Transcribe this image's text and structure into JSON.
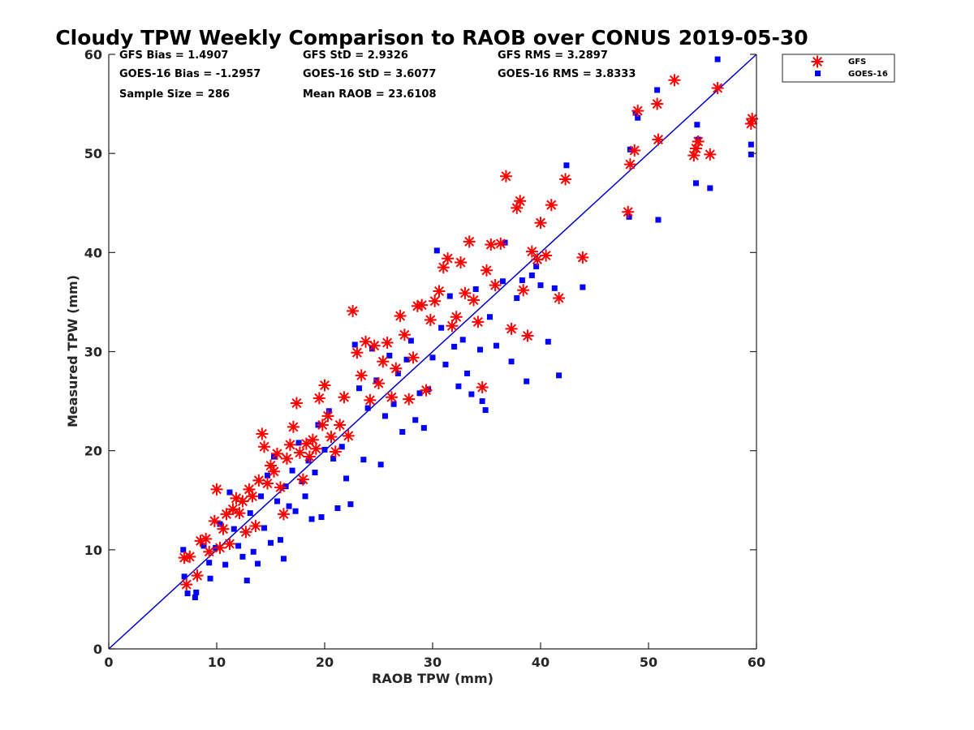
{
  "chart_data": {
    "type": "scatter",
    "title": "Cloudy TPW Weekly Comparison to RAOB over CONUS 2019-05-30",
    "xlabel": "RAOB TPW (mm)",
    "ylabel": "Measured TPW (mm)",
    "xlim": [
      0,
      60
    ],
    "ylim": [
      0,
      60
    ],
    "xticks": [
      "0",
      "10",
      "20",
      "30",
      "40",
      "50",
      "60"
    ],
    "yticks": [
      "0",
      "10",
      "20",
      "30",
      "40",
      "50",
      "60"
    ],
    "grid": false,
    "legend_position": "outside-top-right",
    "stats": [
      {
        "label": "GFS Bias = 1.4907"
      },
      {
        "label": "GFS StD = 2.9326"
      },
      {
        "label": "GFS RMS = 3.2897"
      },
      {
        "label": "GOES-16 Bias = -1.2957"
      },
      {
        "label": "GOES-16 StD = 3.6077"
      },
      {
        "label": "GOES-16 RMS = 3.8333"
      },
      {
        "label": "Sample Size = 286"
      },
      {
        "label": "Mean RAOB = 23.6108"
      }
    ],
    "reference_line": {
      "x": [
        0,
        60
      ],
      "y": [
        0,
        60
      ],
      "color": "#0000cc"
    },
    "series": [
      {
        "name": "GFS",
        "marker": "asterisk",
        "color": "#ff0000",
        "points": [
          [
            7.0,
            9.2
          ],
          [
            7.2,
            6.5
          ],
          [
            7.5,
            9.3
          ],
          [
            8.2,
            7.4
          ],
          [
            8.5,
            10.9
          ],
          [
            9.0,
            11.1
          ],
          [
            9.3,
            9.8
          ],
          [
            9.8,
            12.9
          ],
          [
            10.0,
            16.1
          ],
          [
            10.3,
            10.2
          ],
          [
            10.6,
            12.1
          ],
          [
            10.9,
            13.6
          ],
          [
            11.2,
            10.6
          ],
          [
            11.5,
            14.1
          ],
          [
            11.8,
            15.2
          ],
          [
            12.1,
            13.7
          ],
          [
            12.4,
            14.9
          ],
          [
            12.7,
            11.8
          ],
          [
            13.0,
            16.1
          ],
          [
            13.3,
            15.4
          ],
          [
            13.6,
            12.4
          ],
          [
            13.9,
            17.0
          ],
          [
            14.2,
            21.7
          ],
          [
            14.4,
            20.4
          ],
          [
            14.7,
            16.7
          ],
          [
            15.0,
            18.5
          ],
          [
            15.3,
            17.9
          ],
          [
            15.6,
            19.7
          ],
          [
            15.9,
            16.3
          ],
          [
            16.2,
            13.6
          ],
          [
            16.5,
            19.2
          ],
          [
            16.8,
            20.6
          ],
          [
            17.1,
            22.4
          ],
          [
            17.4,
            24.8
          ],
          [
            17.7,
            19.8
          ],
          [
            18.0,
            17.1
          ],
          [
            18.3,
            20.7
          ],
          [
            18.6,
            19.4
          ],
          [
            18.9,
            21.1
          ],
          [
            19.2,
            20.2
          ],
          [
            19.5,
            25.3
          ],
          [
            19.8,
            22.6
          ],
          [
            20.0,
            26.6
          ],
          [
            20.3,
            23.5
          ],
          [
            20.6,
            21.4
          ],
          [
            21.0,
            19.9
          ],
          [
            21.4,
            22.6
          ],
          [
            21.8,
            25.4
          ],
          [
            22.2,
            21.5
          ],
          [
            22.6,
            34.1
          ],
          [
            23.0,
            29.9
          ],
          [
            23.4,
            27.6
          ],
          [
            23.8,
            31.0
          ],
          [
            24.2,
            25.1
          ],
          [
            24.6,
            30.6
          ],
          [
            25.0,
            26.8
          ],
          [
            25.4,
            29.0
          ],
          [
            25.8,
            30.9
          ],
          [
            26.2,
            25.4
          ],
          [
            26.6,
            28.3
          ],
          [
            27.0,
            33.6
          ],
          [
            27.4,
            31.7
          ],
          [
            27.8,
            25.2
          ],
          [
            28.2,
            29.4
          ],
          [
            28.6,
            34.6
          ],
          [
            29.0,
            34.7
          ],
          [
            29.4,
            26.1
          ],
          [
            29.8,
            33.2
          ],
          [
            30.2,
            35.1
          ],
          [
            30.6,
            36.1
          ],
          [
            31.0,
            38.5
          ],
          [
            31.4,
            39.4
          ],
          [
            31.8,
            32.6
          ],
          [
            32.2,
            33.5
          ],
          [
            32.6,
            39.0
          ],
          [
            33.0,
            35.9
          ],
          [
            33.4,
            41.1
          ],
          [
            33.8,
            35.2
          ],
          [
            34.2,
            33.0
          ],
          [
            34.6,
            26.4
          ],
          [
            35.0,
            38.2
          ],
          [
            35.4,
            40.8
          ],
          [
            35.8,
            36.7
          ],
          [
            36.3,
            40.9
          ],
          [
            36.8,
            47.7
          ],
          [
            37.3,
            32.3
          ],
          [
            37.8,
            44.5
          ],
          [
            38.1,
            45.2
          ],
          [
            38.4,
            36.2
          ],
          [
            38.8,
            31.6
          ],
          [
            39.2,
            40.1
          ],
          [
            39.7,
            39.3
          ],
          [
            40.0,
            43.0
          ],
          [
            40.5,
            39.7
          ],
          [
            41.0,
            44.8
          ],
          [
            41.7,
            35.4
          ],
          [
            42.3,
            47.4
          ],
          [
            43.9,
            39.5
          ],
          [
            48.1,
            44.1
          ],
          [
            48.3,
            48.9
          ],
          [
            48.7,
            50.3
          ],
          [
            49.0,
            54.3
          ],
          [
            50.8,
            55.0
          ],
          [
            50.9,
            51.4
          ],
          [
            52.4,
            57.4
          ],
          [
            54.2,
            49.8
          ],
          [
            54.4,
            50.5
          ],
          [
            54.6,
            51.2
          ],
          [
            55.7,
            49.9
          ],
          [
            56.4,
            56.6
          ],
          [
            59.5,
            53.0
          ],
          [
            59.6,
            53.5
          ]
        ]
      },
      {
        "name": "GOES-16",
        "marker": "square",
        "color": "#0000ff",
        "points": [
          [
            6.9,
            10.0
          ],
          [
            7.0,
            7.3
          ],
          [
            7.3,
            5.6
          ],
          [
            8.0,
            5.2
          ],
          [
            8.1,
            5.7
          ],
          [
            8.8,
            10.4
          ],
          [
            9.3,
            8.7
          ],
          [
            9.4,
            7.1
          ],
          [
            9.9,
            10.2
          ],
          [
            10.3,
            12.6
          ],
          [
            10.8,
            8.5
          ],
          [
            11.2,
            15.8
          ],
          [
            11.6,
            12.1
          ],
          [
            12.0,
            10.4
          ],
          [
            12.4,
            9.3
          ],
          [
            12.8,
            6.9
          ],
          [
            13.1,
            13.7
          ],
          [
            13.4,
            9.8
          ],
          [
            13.8,
            8.6
          ],
          [
            14.1,
            15.4
          ],
          [
            14.4,
            12.2
          ],
          [
            14.7,
            17.5
          ],
          [
            15.0,
            10.7
          ],
          [
            15.3,
            19.4
          ],
          [
            15.6,
            14.9
          ],
          [
            15.9,
            11.0
          ],
          [
            16.2,
            9.1
          ],
          [
            16.4,
            16.4
          ],
          [
            16.7,
            14.4
          ],
          [
            17.0,
            18.0
          ],
          [
            17.3,
            13.9
          ],
          [
            17.6,
            20.8
          ],
          [
            17.9,
            16.9
          ],
          [
            18.2,
            15.4
          ],
          [
            18.5,
            19.0
          ],
          [
            18.8,
            13.1
          ],
          [
            19.1,
            17.8
          ],
          [
            19.4,
            22.6
          ],
          [
            19.7,
            13.3
          ],
          [
            20.0,
            20.1
          ],
          [
            20.4,
            24.0
          ],
          [
            20.8,
            19.2
          ],
          [
            21.2,
            14.2
          ],
          [
            21.6,
            20.4
          ],
          [
            22.0,
            17.2
          ],
          [
            22.4,
            14.6
          ],
          [
            22.8,
            30.7
          ],
          [
            23.2,
            26.3
          ],
          [
            23.6,
            19.1
          ],
          [
            24.0,
            24.3
          ],
          [
            24.4,
            30.3
          ],
          [
            24.8,
            27.1
          ],
          [
            25.2,
            18.6
          ],
          [
            25.6,
            23.5
          ],
          [
            26.0,
            29.6
          ],
          [
            26.4,
            24.7
          ],
          [
            26.8,
            27.8
          ],
          [
            27.2,
            21.9
          ],
          [
            27.6,
            29.2
          ],
          [
            28.0,
            31.1
          ],
          [
            28.4,
            23.1
          ],
          [
            28.8,
            25.8
          ],
          [
            29.2,
            22.3
          ],
          [
            29.6,
            26.2
          ],
          [
            30.0,
            29.4
          ],
          [
            30.4,
            40.2
          ],
          [
            30.8,
            32.4
          ],
          [
            31.2,
            28.7
          ],
          [
            31.6,
            35.6
          ],
          [
            32.0,
            30.5
          ],
          [
            32.4,
            26.5
          ],
          [
            32.8,
            31.2
          ],
          [
            33.2,
            27.8
          ],
          [
            33.6,
            25.7
          ],
          [
            34.0,
            36.3
          ],
          [
            34.4,
            30.2
          ],
          [
            34.6,
            25.0
          ],
          [
            34.9,
            24.1
          ],
          [
            35.3,
            33.5
          ],
          [
            35.9,
            30.6
          ],
          [
            36.5,
            37.1
          ],
          [
            36.7,
            41.0
          ],
          [
            37.3,
            29.0
          ],
          [
            37.8,
            35.4
          ],
          [
            38.3,
            37.2
          ],
          [
            38.7,
            27.0
          ],
          [
            39.2,
            37.7
          ],
          [
            39.6,
            38.6
          ],
          [
            40.0,
            36.7
          ],
          [
            40.7,
            31.0
          ],
          [
            41.3,
            36.4
          ],
          [
            41.7,
            27.6
          ],
          [
            42.4,
            48.8
          ],
          [
            43.9,
            36.5
          ],
          [
            48.2,
            43.6
          ],
          [
            48.3,
            50.4
          ],
          [
            48.8,
            54.1
          ],
          [
            49.0,
            53.6
          ],
          [
            50.9,
            43.3
          ],
          [
            50.8,
            56.4
          ],
          [
            54.4,
            47.0
          ],
          [
            54.5,
            52.9
          ],
          [
            54.6,
            51.4
          ],
          [
            55.7,
            46.5
          ],
          [
            56.4,
            59.5
          ],
          [
            59.5,
            50.9
          ],
          [
            59.5,
            49.9
          ]
        ]
      }
    ]
  }
}
